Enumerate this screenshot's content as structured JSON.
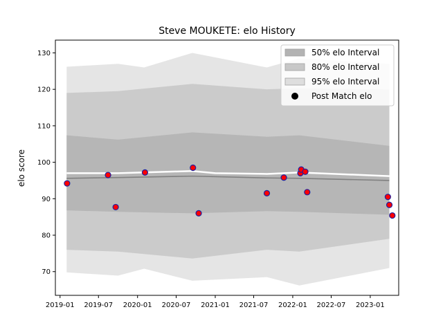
{
  "chart_data": {
    "type": "line",
    "title": "Steve MOUKETE: elo History",
    "xlabel": "",
    "ylabel": "elo score",
    "xlim": [
      "2018-12-10",
      "2023-05-15"
    ],
    "ylim": [
      63.5,
      133.5
    ],
    "x_ticks": [
      "2019-01",
      "2019-07",
      "2020-01",
      "2020-07",
      "2021-01",
      "2021-07",
      "2022-01",
      "2022-07",
      "2023-01"
    ],
    "y_ticks": [
      70,
      80,
      90,
      100,
      110,
      120,
      130
    ],
    "grid": false,
    "legend_position": "top-right",
    "legend": [
      {
        "label": "50% elo Interval",
        "kind": "band",
        "color": "#b3b3b3"
      },
      {
        "label": "80% elo Interval",
        "kind": "band",
        "color": "#c7c7c7"
      },
      {
        "label": "95% elo Interval",
        "kind": "band",
        "color": "#dedede"
      },
      {
        "label": "Post Match elo",
        "kind": "marker",
        "color": "#000000"
      }
    ],
    "colors": {
      "band_50": "#b3b3b3",
      "band_80": "#c7c7c7",
      "band_95": "#e0e0e0",
      "mean_line": "#808080",
      "white_line": "#ffffff",
      "point_fill": "#ff0000",
      "point_edge": "#1f1fa0"
    },
    "series": [
      {
        "kind": "band",
        "legend_ref": 2,
        "dates": [
          "2019-02-01",
          "2019-10-01",
          "2020-02-01",
          "2020-09-15",
          "2021-09-01",
          "2022-02-01",
          "2023-04-01"
        ],
        "lower": [
          69.8,
          68.9,
          70.8,
          67.5,
          68.5,
          66.2,
          71.0
        ],
        "upper": [
          126.2,
          127.0,
          126.0,
          130.0,
          126.0,
          128.5,
          127.0
        ]
      },
      {
        "kind": "band",
        "legend_ref": 1,
        "dates": [
          "2019-02-01",
          "2019-10-01",
          "2020-09-15",
          "2021-09-01",
          "2022-02-01",
          "2023-04-01"
        ],
        "lower": [
          76.0,
          75.5,
          73.6,
          76.0,
          75.5,
          79.0
        ],
        "upper": [
          119.0,
          119.5,
          121.5,
          120.0,
          120.3,
          120.0
        ]
      },
      {
        "kind": "band",
        "legend_ref": 0,
        "dates": [
          "2019-02-01",
          "2019-10-01",
          "2020-09-15",
          "2021-09-01",
          "2022-02-01",
          "2023-04-01"
        ],
        "lower": [
          86.8,
          86.4,
          86.0,
          86.6,
          86.4,
          85.6
        ],
        "upper": [
          107.4,
          106.2,
          108.2,
          107.0,
          107.4,
          104.5
        ]
      },
      {
        "kind": "line",
        "name": "mean",
        "dates": [
          "2019-02-01",
          "2019-10-01",
          "2020-09-15",
          "2021-09-01",
          "2022-02-01",
          "2023-04-01"
        ],
        "values": [
          95.6,
          95.8,
          96.2,
          95.7,
          95.6,
          95.0
        ]
      },
      {
        "kind": "line",
        "name": "upper",
        "dates": [
          "2019-02-01",
          "2019-10-01",
          "2020-09-15",
          "2021-01-01",
          "2021-09-01",
          "2022-02-01",
          "2023-04-01"
        ],
        "values": [
          97.0,
          97.0,
          97.6,
          97.0,
          96.8,
          97.2,
          96.2
        ]
      },
      {
        "kind": "scatter",
        "legend_ref": 3,
        "points": [
          {
            "date": "2019-02-03",
            "elo": 94.2
          },
          {
            "date": "2019-08-15",
            "elo": 96.5
          },
          {
            "date": "2019-09-20",
            "elo": 87.7
          },
          {
            "date": "2020-02-05",
            "elo": 97.2
          },
          {
            "date": "2020-09-18",
            "elo": 98.5
          },
          {
            "date": "2020-10-15",
            "elo": 86.0
          },
          {
            "date": "2021-09-01",
            "elo": 91.5
          },
          {
            "date": "2021-11-20",
            "elo": 95.8
          },
          {
            "date": "2022-02-06",
            "elo": 97.0
          },
          {
            "date": "2022-02-10",
            "elo": 98.0
          },
          {
            "date": "2022-03-01",
            "elo": 97.4
          },
          {
            "date": "2022-03-10",
            "elo": 91.8
          },
          {
            "date": "2023-03-25",
            "elo": 90.5
          },
          {
            "date": "2023-04-01",
            "elo": 88.3
          },
          {
            "date": "2023-04-15",
            "elo": 85.4
          }
        ]
      }
    ]
  }
}
